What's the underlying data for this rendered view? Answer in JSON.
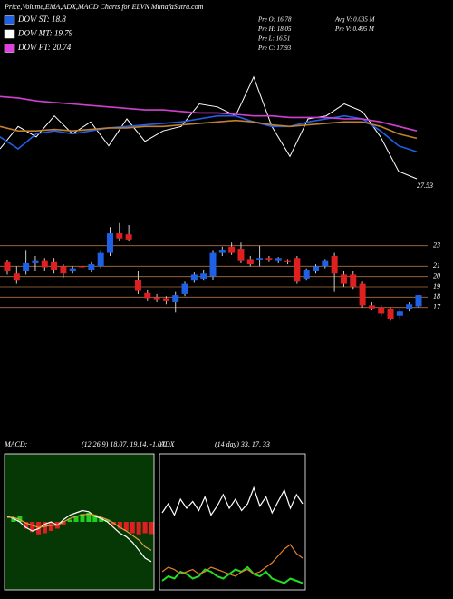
{
  "header": {
    "title": "Price,Volume,EMA,ADX,MACD Charts for ELVN  MunafaSutra.com",
    "indicators": [
      {
        "label": "DOW ST: 18.8",
        "color": "#1e60e6"
      },
      {
        "label": "DOW MT: 19.79",
        "color": "#ffffff"
      },
      {
        "label": "DOW PT: 20.74",
        "color": "#e040e0"
      }
    ],
    "stats": [
      "Pre  O: 16.78",
      "Pre  H: 18.05",
      "Pre  L: 16.51",
      "Pre  C: 17.93",
      "Avg V: 0.035 M",
      "Pre  V: 0.495 M"
    ]
  },
  "chart_data": [
    {
      "type": "line",
      "last_label": "27.53",
      "ylim": [
        0,
        100
      ],
      "series": [
        {
          "color": "#ffffff",
          "values": [
            40,
            55,
            48,
            62,
            50,
            58,
            42,
            60,
            45,
            52,
            55,
            70,
            68,
            62,
            88,
            55,
            35,
            60,
            62,
            70,
            65,
            48,
            25,
            20
          ]
        },
        {
          "color": "#1e60e6",
          "values": [
            48,
            40,
            50,
            52,
            50,
            52,
            54,
            55,
            56,
            57,
            58,
            60,
            62,
            62,
            58,
            55,
            55,
            58,
            60,
            62,
            60,
            52,
            42,
            38
          ]
        },
        {
          "color": "#d040d0",
          "values": [
            75,
            74,
            72,
            71,
            70,
            69,
            68,
            67,
            66,
            66,
            65,
            64,
            64,
            63,
            62,
            62,
            61,
            61,
            61,
            60,
            60,
            58,
            55,
            52
          ]
        },
        {
          "color": "#c08030",
          "values": [
            55,
            52,
            52,
            53,
            52,
            53,
            54,
            54,
            55,
            55,
            56,
            57,
            58,
            59,
            58,
            56,
            55,
            56,
            57,
            58,
            58,
            55,
            50,
            47
          ]
        }
      ]
    },
    {
      "type": "candlestick",
      "up_color": "#1e60e6",
      "down_color": "#e02020",
      "grid_color": "#b07040",
      "ylim": [
        13,
        25
      ],
      "yticks": [
        17,
        18,
        19,
        20,
        21,
        23
      ],
      "grid": true,
      "open": [
        21.4,
        20.3,
        20.5,
        21.3,
        21.5,
        21.4,
        21.0,
        20.5,
        21.0,
        20.6,
        21.0,
        22.3,
        24.2,
        24.1,
        19.7,
        18.4,
        18.0,
        17.9,
        17.5,
        18.3,
        19.6,
        19.8,
        20.0,
        22.3,
        22.9,
        22.7,
        21.7,
        21.6,
        21.8,
        21.5,
        21.5,
        21.8,
        19.8,
        20.5,
        21.0,
        22.0,
        20.2,
        20.2,
        19.3,
        17.2,
        17.0,
        16.8,
        16.2,
        16.8,
        17.1
      ],
      "high": [
        21.6,
        21.0,
        22.5,
        22.0,
        21.8,
        21.8,
        21.2,
        21.0,
        21.3,
        21.4,
        22.5,
        24.8,
        25.2,
        25.0,
        20.5,
        18.7,
        18.3,
        18.1,
        18.5,
        19.5,
        20.4,
        20.6,
        22.5,
        22.9,
        23.3,
        23.3,
        22.0,
        23.0,
        22.0,
        21.9,
        21.7,
        22.0,
        20.8,
        21.2,
        21.7,
        22.3,
        20.5,
        20.5,
        19.5,
        17.5,
        17.2,
        17.0,
        16.8,
        17.5,
        18.2
      ],
      "low": [
        20.2,
        19.3,
        20.2,
        20.5,
        20.5,
        20.3,
        19.9,
        20.3,
        20.7,
        20.4,
        20.8,
        22.0,
        23.5,
        23.5,
        18.3,
        17.6,
        17.5,
        17.3,
        16.5,
        18.1,
        19.4,
        19.6,
        19.7,
        22.0,
        22.1,
        21.3,
        21.0,
        21.0,
        21.4,
        21.3,
        21.2,
        19.3,
        19.6,
        20.3,
        20.8,
        18.5,
        19.0,
        18.8,
        17.0,
        16.7,
        16.2,
        15.7,
        15.9,
        16.6,
        17.0
      ],
      "close": [
        20.5,
        19.6,
        21.3,
        21.5,
        20.9,
        20.6,
        20.3,
        20.8,
        20.9,
        21.2,
        22.3,
        24.2,
        23.7,
        23.6,
        18.6,
        17.9,
        17.8,
        17.6,
        18.2,
        19.3,
        20.2,
        20.3,
        22.3,
        22.6,
        22.3,
        21.5,
        21.2,
        21.8,
        21.6,
        21.8,
        21.4,
        19.5,
        20.6,
        21.0,
        21.5,
        20.3,
        19.3,
        19.0,
        17.2,
        16.9,
        16.4,
        15.9,
        16.6,
        17.3,
        18.2
      ]
    },
    {
      "type": "macd",
      "title": "MACD:",
      "params": "(12,26,9) 18.07, 19.14, -1.07",
      "ylim": [
        -6,
        6
      ],
      "background": "#063806",
      "pos_color": "#20d020",
      "neg_color": "#e02020",
      "histogram": [
        0,
        0.3,
        0.5,
        -0.6,
        -0.9,
        -1.1,
        -1,
        -0.8,
        -0.6,
        -0.3,
        0.2,
        0.5,
        0.7,
        0.8,
        0.6,
        0.4,
        0.2,
        -0.3,
        -0.6,
        -0.8,
        -1,
        -1.1,
        -1,
        -1.07
      ],
      "series": [
        {
          "color": "#ffffff",
          "values": [
            0.5,
            0.3,
            0,
            -0.5,
            -0.8,
            -0.6,
            -0.2,
            0,
            -0.3,
            0.2,
            0.6,
            0.8,
            1,
            0.9,
            0.5,
            0.3,
            0,
            -0.5,
            -1,
            -1.3,
            -1.8,
            -2.5,
            -3.2,
            -3.5
          ]
        },
        {
          "color": "#e0a040",
          "values": [
            0.4,
            0.4,
            0.2,
            -0.1,
            -0.3,
            -0.5,
            -0.4,
            -0.3,
            -0.3,
            0,
            0.3,
            0.5,
            0.6,
            0.7,
            0.6,
            0.4,
            0.2,
            -0.1,
            -0.5,
            -0.8,
            -1.2,
            -1.6,
            -2.2,
            -2.5
          ]
        }
      ]
    },
    {
      "type": "adx",
      "title": "ADX",
      "params": "(14 day) 33, 17, 33",
      "ylim": [
        0,
        60
      ],
      "series": [
        {
          "color": "#ffffff",
          "values": [
            34,
            38,
            33,
            40,
            36,
            39,
            35,
            41,
            33,
            37,
            42,
            36,
            40,
            35,
            38,
            45,
            37,
            41,
            34,
            39,
            44,
            36,
            42,
            38
          ]
        },
        {
          "color": "#20e020",
          "values": [
            4,
            6,
            5,
            8,
            7,
            5,
            6,
            9,
            8,
            6,
            5,
            7,
            9,
            8,
            10,
            7,
            6,
            8,
            5,
            4,
            3,
            5,
            4,
            3
          ]
        },
        {
          "color": "#e08030",
          "values": [
            8,
            10,
            9,
            7,
            8,
            9,
            7,
            8,
            10,
            9,
            8,
            7,
            6,
            8,
            9,
            7,
            8,
            10,
            12,
            15,
            18,
            20,
            16,
            14
          ]
        }
      ]
    }
  ]
}
